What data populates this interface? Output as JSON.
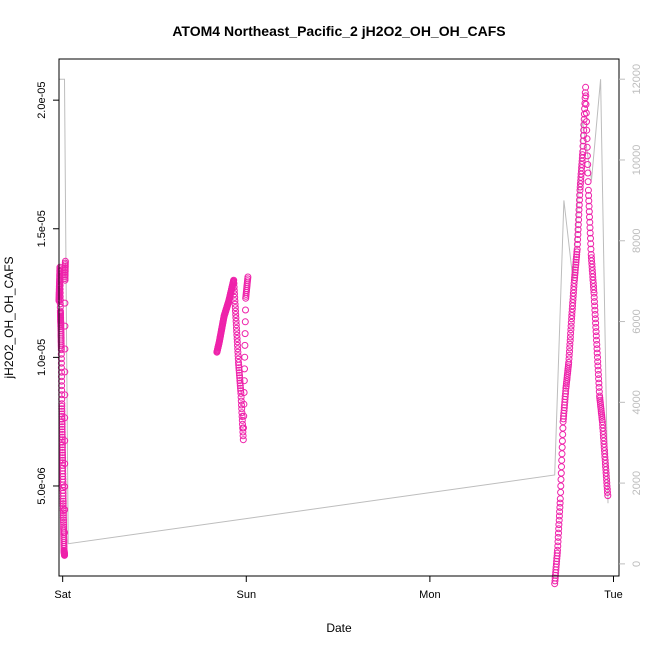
{
  "chart_data": {
    "type": "scatter",
    "title": "ATOM4 Northeast_Pacific_2 jH2O2_OH_OH_CAFS",
    "xlabel": "Date",
    "ylabel": "jH2O2_OH_OH_CAFS",
    "x_unit": "days since Saturday 00:00",
    "xlim": [
      0,
      3.05
    ],
    "ylim": [
      1.5e-06,
      2.16e-05
    ],
    "x_ticks": [
      {
        "value": 0.02,
        "label": "Sat"
      },
      {
        "value": 1.02,
        "label": "Sun"
      },
      {
        "value": 2.02,
        "label": "Mon"
      },
      {
        "value": 3.02,
        "label": "Tue"
      }
    ],
    "y_ticks": [
      {
        "value": 5e-06,
        "label": "5.0e-06"
      },
      {
        "value": 1e-05,
        "label": "1.0e-05"
      },
      {
        "value": 1.5e-05,
        "label": "1.5e-05"
      },
      {
        "value": 2e-05,
        "label": "2.0e-05"
      }
    ],
    "y2lim": [
      -300,
      12500
    ],
    "y2_ticks": [
      {
        "value": 0,
        "label": "0"
      },
      {
        "value": 2000,
        "label": "2000"
      },
      {
        "value": 4000,
        "label": "4000"
      },
      {
        "value": 6000,
        "label": "6000"
      },
      {
        "value": 8000,
        "label": "8000"
      },
      {
        "value": 10000,
        "label": "10000"
      },
      {
        "value": 12000,
        "label": "12000"
      }
    ],
    "series": [
      {
        "kind": "points",
        "color": "#ee22aa",
        "segments": [
          {
            "x0": 0.0,
            "x1": 0.035,
            "levels": [
              1.22e-05,
              1.28e-05,
              1.35e-05,
              1.18e-05,
              1.12e-05,
              1.03e-05,
              8.2e-06,
              7e-06,
              5.8e-06,
              4.5e-06,
              3.4e-06,
              2.5e-06,
              2.3e-06,
              1.3e-05,
              1.38e-05
            ]
          },
          {
            "x0": 0.86,
            "x1": 1.03,
            "levels": [
              1.02e-05,
              1.06e-05,
              1.11e-05,
              1.16e-05,
              1.19e-05,
              1.22e-05,
              1.26e-05,
              1.3e-05,
              1.14e-05,
              9.8e-06,
              8.6e-06,
              6.8e-06,
              1.23e-05,
              1.32e-05
            ]
          },
          {
            "x0": 2.7,
            "x1": 2.99,
            "levels": [
              1.2e-06,
              2.5e-06,
              4.5e-06,
              7.5e-06,
              8.8e-06,
              9.8e-06,
              1.15e-05,
              1.3e-05,
              1.42e-05,
              1.65e-05,
              1.8e-05,
              2.05e-05,
              1.65e-05,
              1.4e-05,
              1.25e-05,
              1.05e-05,
              8.5e-06,
              7.5e-06,
              6e-06,
              4.5e-06
            ]
          }
        ]
      },
      {
        "kind": "line",
        "color": "#bdbdbd",
        "axis": "right",
        "points": [
          [
            0.0,
            12000
          ],
          [
            0.03,
            12000
          ],
          [
            0.05,
            500
          ],
          [
            2.7,
            2200
          ],
          [
            2.75,
            9000
          ],
          [
            2.8,
            7000
          ],
          [
            2.85,
            11000
          ],
          [
            2.9,
            9500
          ],
          [
            2.95,
            12000
          ],
          [
            2.99,
            1500
          ]
        ]
      }
    ]
  }
}
